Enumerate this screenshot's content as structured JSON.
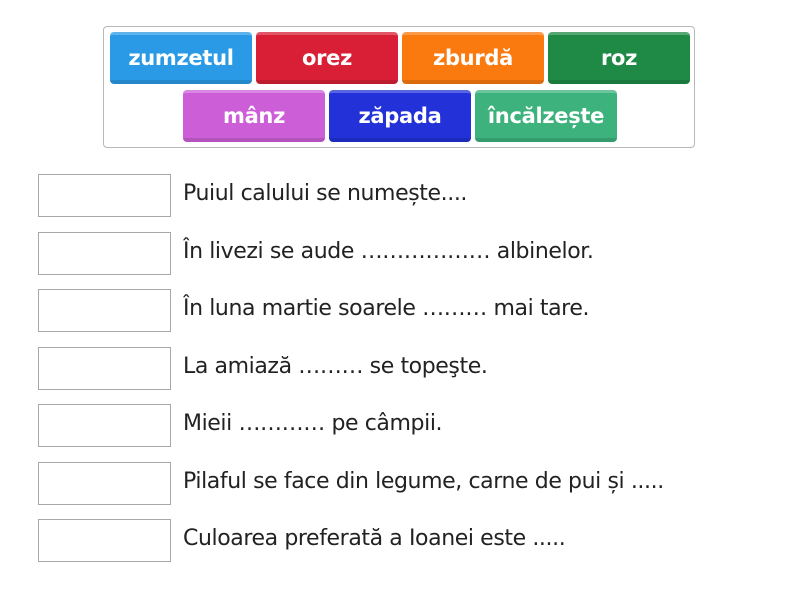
{
  "word_bank": [
    {
      "label": "zumzetul",
      "color": "#2a9ae6"
    },
    {
      "label": "orez",
      "color": "#d81f35"
    },
    {
      "label": "zburdă",
      "color": "#fb7a10"
    },
    {
      "label": "roz",
      "color": "#1e8a45"
    },
    {
      "label": "mânz",
      "color": "#cc5fd8"
    },
    {
      "label": "zăpada",
      "color": "#2232d8"
    },
    {
      "label": "încălzește",
      "color": "#3db27d"
    }
  ],
  "questions": [
    "Puiul calului se numește....",
    "În livezi se aude ……………… albinelor.",
    "În luna martie soarele ……… mai tare.",
    "La amiază ……… se topeşte.",
    "Mieii ………… pe câmpii.",
    "Pilaful se face din legume, carne de pui și .....",
    "Culoarea preferată a Ioanei este ....."
  ]
}
